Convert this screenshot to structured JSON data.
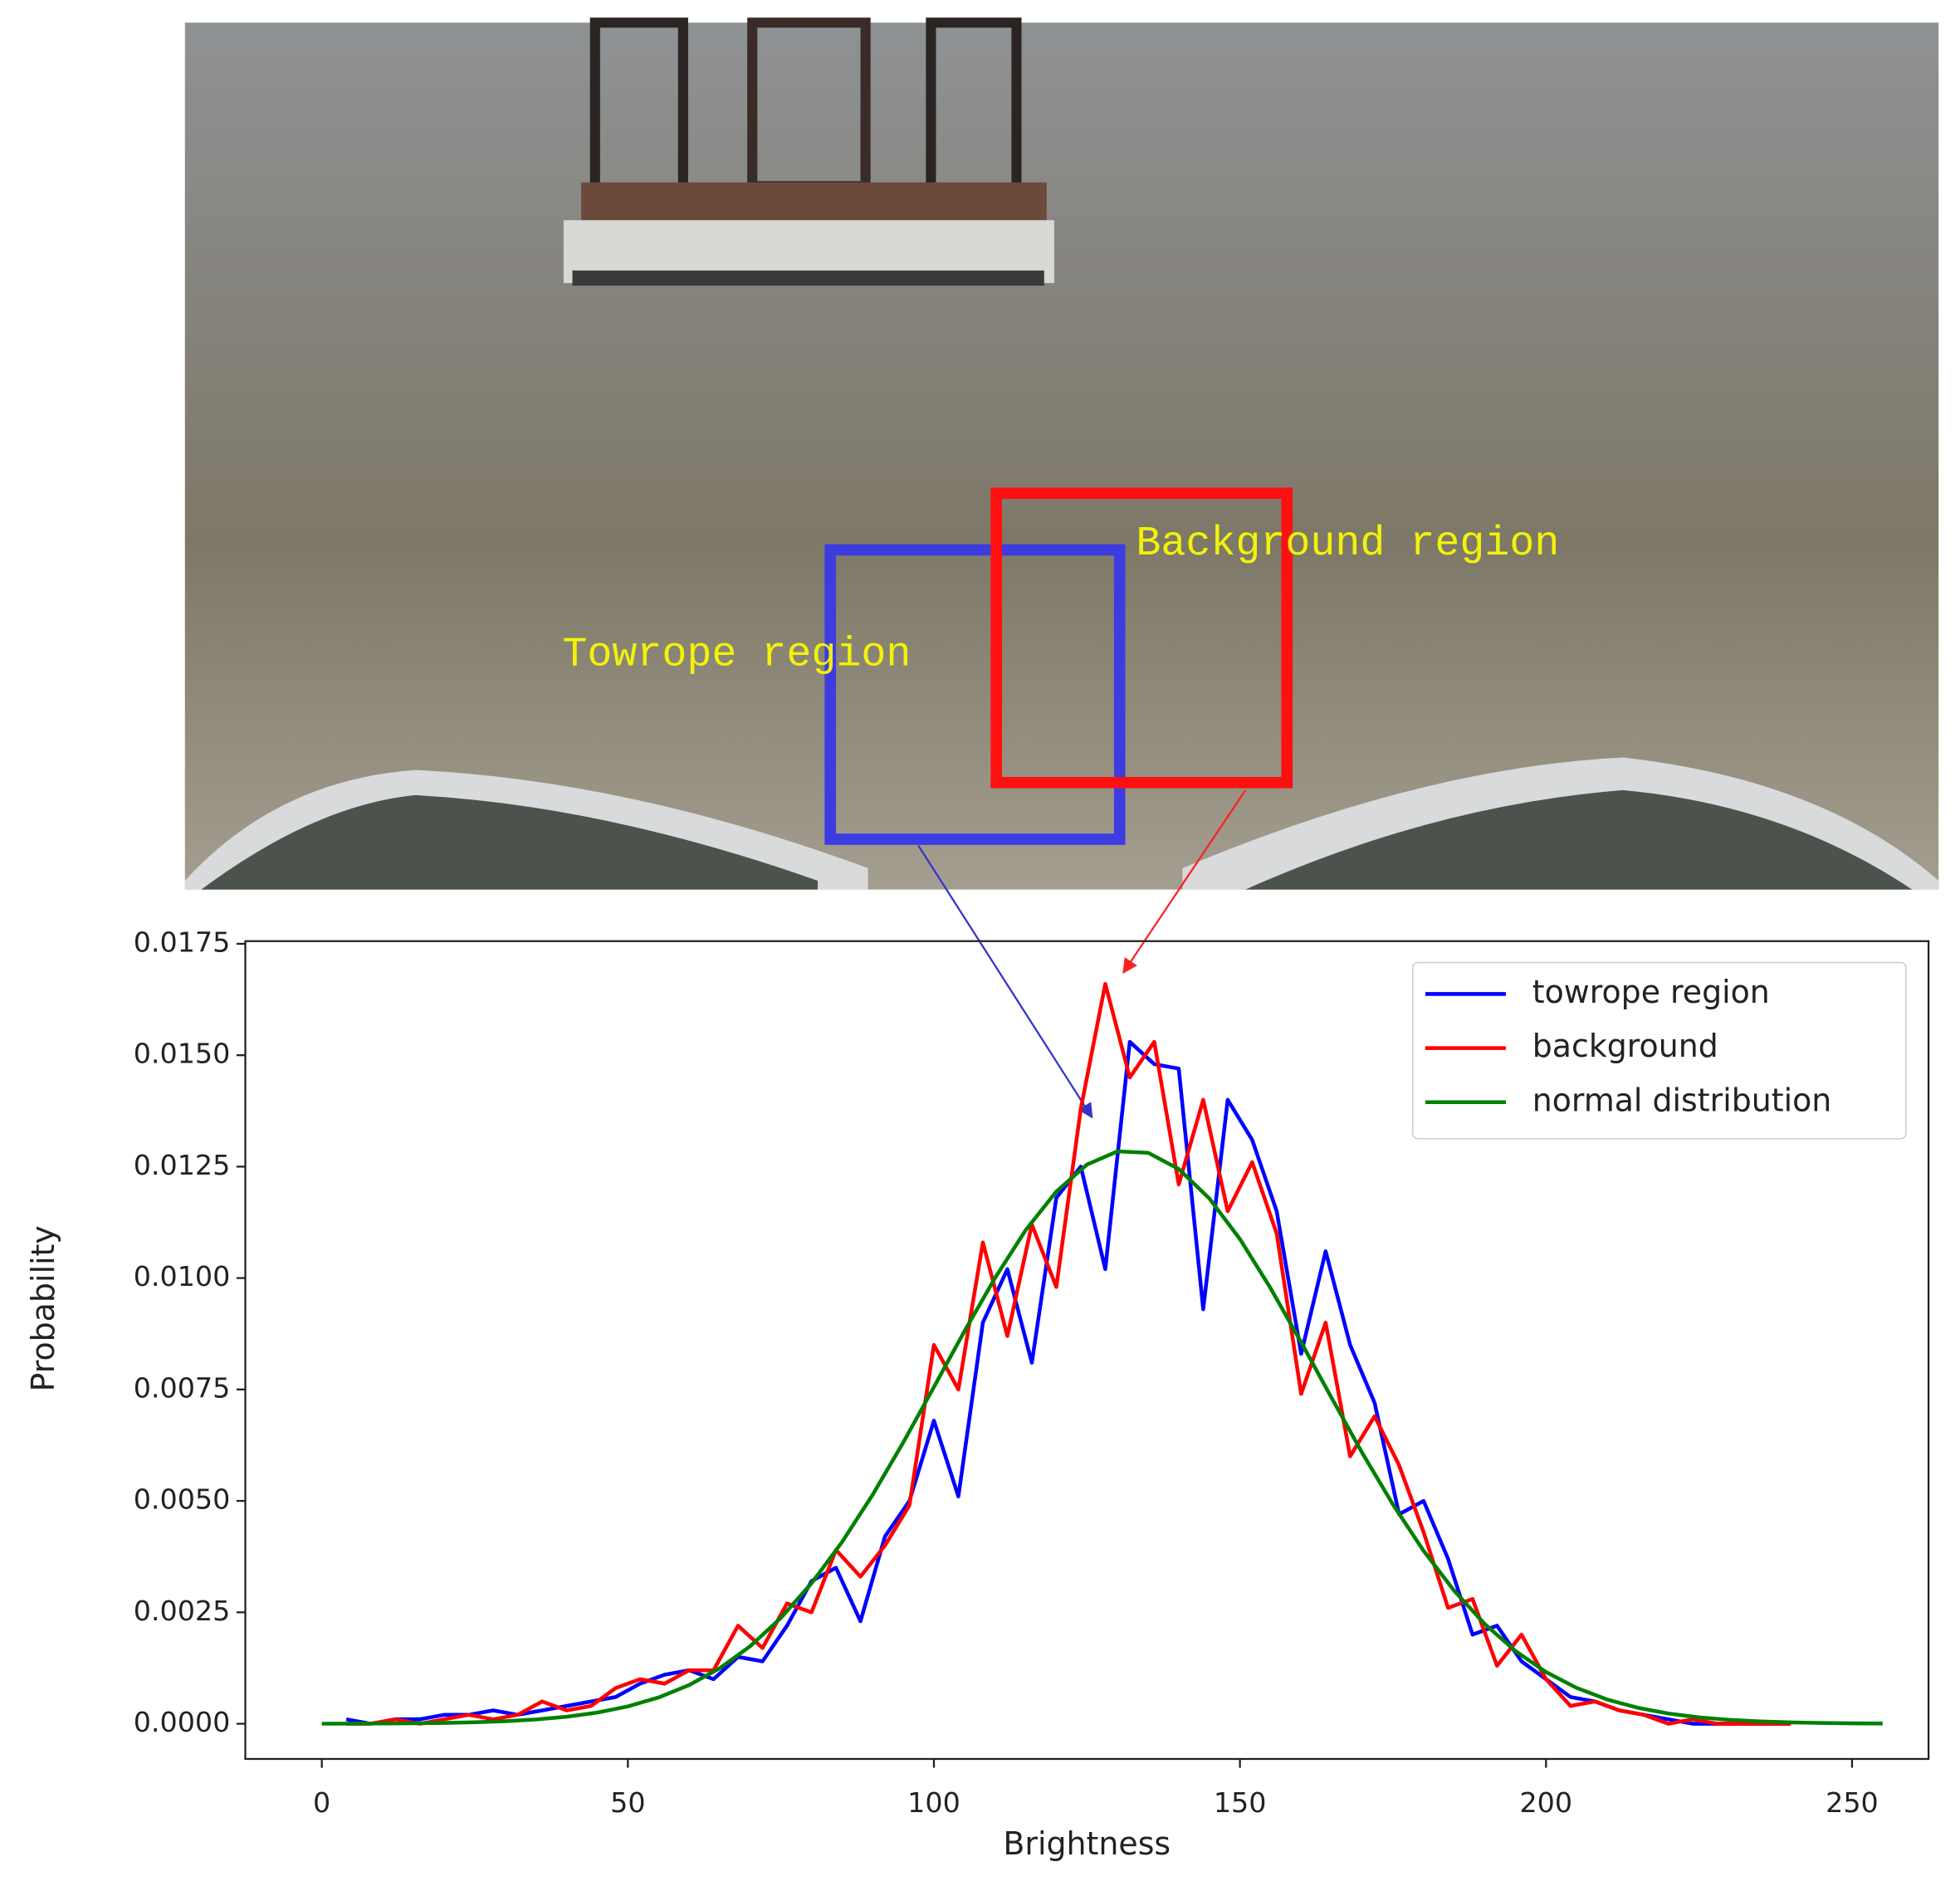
{
  "chart_data": {
    "type": "line",
    "annotations": [
      "Towrope region",
      "Background region"
    ],
    "xlabel": "Brightness",
    "ylabel": "Probability",
    "xlim": [
      -12.5,
      262.5
    ],
    "ylim": [
      -0.00079,
      0.01756
    ],
    "xticks": [
      0,
      50,
      100,
      150,
      200,
      250
    ],
    "yticks": [
      {
        "value": 0,
        "label": "0.0000"
      },
      {
        "value": 0.0025,
        "label": "0.0025"
      },
      {
        "value": 0.005,
        "label": "0.0050"
      },
      {
        "value": 0.0075,
        "label": "0.0075"
      },
      {
        "value": 0.01,
        "label": "0.0100"
      },
      {
        "value": 0.0125,
        "label": "0.0125"
      },
      {
        "value": 0.015,
        "label": "0.0150"
      },
      {
        "value": 0.0175,
        "label": "0.0175"
      }
    ],
    "legend": "upper right",
    "grid": false,
    "series": [
      {
        "name": "towrope region",
        "color": "#0000ff",
        "x": [
          4,
          8,
          12,
          16,
          20,
          24,
          28,
          32,
          36,
          40,
          44,
          48,
          52,
          56,
          60,
          64,
          68,
          72,
          76,
          80,
          84,
          88,
          92,
          96,
          100,
          104,
          108,
          112,
          116,
          120,
          124,
          128,
          132,
          136,
          140,
          144,
          148,
          152,
          156,
          160,
          164,
          168,
          172,
          176,
          180,
          184,
          188,
          192,
          196,
          200,
          204,
          208,
          212,
          216,
          220,
          224,
          228,
          232,
          236,
          240
        ],
        "values": [
          0.0001,
          0.0,
          0.0001,
          0.0001,
          0.0002,
          0.0002,
          0.0003,
          0.0002,
          0.0003,
          0.0004,
          0.0005,
          0.0006,
          0.0009,
          0.0011,
          0.0012,
          0.001,
          0.0015,
          0.0014,
          0.0022,
          0.0032,
          0.0035,
          0.0023,
          0.0042,
          0.005,
          0.0068,
          0.0051,
          0.009,
          0.0102,
          0.0081,
          0.0118,
          0.0125,
          0.0102,
          0.0153,
          0.0148,
          0.0147,
          0.0093,
          0.014,
          0.0131,
          0.0115,
          0.0083,
          0.0106,
          0.0085,
          0.0072,
          0.0047,
          0.005,
          0.0037,
          0.002,
          0.0022,
          0.0014,
          0.001,
          0.0006,
          0.0005,
          0.0003,
          0.0002,
          0.0001,
          0.0,
          0.0,
          0.0,
          0.0,
          0.0
        ]
      },
      {
        "name": "background",
        "color": "#ff0000",
        "x": [
          4,
          8,
          12,
          16,
          20,
          24,
          28,
          32,
          36,
          40,
          44,
          48,
          52,
          56,
          60,
          64,
          68,
          72,
          76,
          80,
          84,
          88,
          92,
          96,
          100,
          104,
          108,
          112,
          116,
          120,
          124,
          128,
          132,
          136,
          140,
          144,
          148,
          152,
          156,
          160,
          164,
          168,
          172,
          176,
          180,
          184,
          188,
          192,
          196,
          200,
          204,
          208,
          212,
          216,
          220,
          224,
          228,
          232,
          236,
          240
        ],
        "values": [
          0.0,
          0.0,
          0.0001,
          0.0,
          0.0001,
          0.0002,
          0.0001,
          0.0002,
          0.0005,
          0.0003,
          0.0004,
          0.0008,
          0.001,
          0.0009,
          0.0012,
          0.0012,
          0.0022,
          0.0017,
          0.0027,
          0.0025,
          0.0039,
          0.0033,
          0.004,
          0.0049,
          0.0085,
          0.0075,
          0.0108,
          0.0087,
          0.0112,
          0.0098,
          0.0138,
          0.0166,
          0.0145,
          0.0153,
          0.0121,
          0.014,
          0.0115,
          0.0126,
          0.011,
          0.0074,
          0.009,
          0.006,
          0.0069,
          0.0058,
          0.0043,
          0.0026,
          0.0028,
          0.0013,
          0.002,
          0.001,
          0.0004,
          0.0005,
          0.0003,
          0.0002,
          0.0,
          0.0001,
          0.0,
          0.0,
          0.0,
          0.0
        ]
      },
      {
        "name": "normal distribution",
        "color": "#008000",
        "x": [
          0,
          5,
          10,
          15,
          20,
          25,
          30,
          35,
          40,
          45,
          50,
          55,
          60,
          65,
          70,
          75,
          80,
          85,
          90,
          95,
          100,
          105,
          110,
          115,
          120,
          125,
          130,
          135,
          140,
          145,
          150,
          155,
          160,
          165,
          170,
          175,
          180,
          185,
          190,
          195,
          200,
          205,
          210,
          215,
          220,
          225,
          230,
          235,
          240,
          245,
          250,
          255
        ],
        "values": [
          1.5e-06,
          2.9e-06,
          5.6e-06,
          1.04e-05,
          1.89e-05,
          3.33e-05,
          5.74e-05,
          9.63e-05,
          0.000157,
          0.000251,
          0.000389,
          0.000588,
          0.000867,
          0.001244,
          0.001741,
          0.002375,
          0.003152,
          0.004079,
          0.00514,
          0.006314,
          0.007555,
          0.00881,
          0.010006,
          0.011077,
          0.011941,
          0.012546,
          0.012843,
          0.01281,
          0.012448,
          0.011786,
          0.010874,
          0.009773,
          0.008559,
          0.007304,
          0.006072,
          0.004918,
          0.00388,
          0.002984,
          0.002237,
          0.001632,
          0.001161,
          0.000804,
          0.000543,
          0.000358,
          0.000229,
          0.000143,
          8.7e-05,
          5.2e-05,
          3e-05,
          1.7e-05,
          9.2e-06,
          4.9e-06
        ]
      }
    ]
  }
}
